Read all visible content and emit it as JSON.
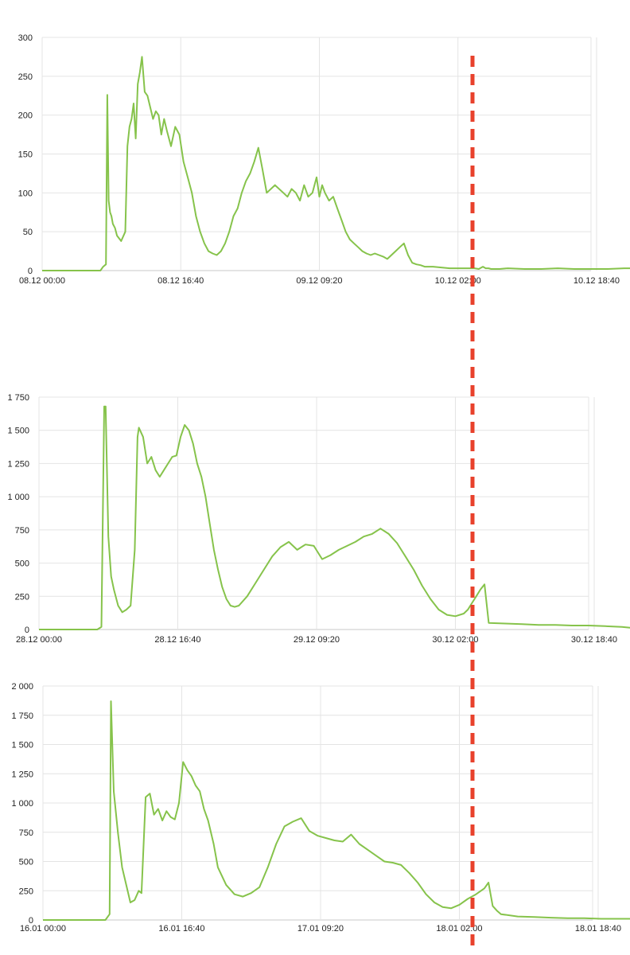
{
  "colors": {
    "line": "#86c34b",
    "grid": "#e4e4e4",
    "axis": "#c8c8c8",
    "marker": "#e8412c",
    "text": "#222222"
  },
  "marker": {
    "style": "dashed",
    "color": "#e8412c",
    "position": "shared vertical line",
    "description": ""
  },
  "chart_data": [
    {
      "type": "line",
      "title": "",
      "xlabel": "",
      "ylabel": "",
      "ylim": [
        0,
        300
      ],
      "xlim_hours": [
        0,
        66
      ],
      "grid": true,
      "x_tick_labels": [
        "08.12 00:00",
        "08.12 16:40",
        "09.12 09:20",
        "10.12 02:00",
        "10.12 18:40"
      ],
      "y_tick_labels": [
        "0",
        "50",
        "100",
        "150",
        "200",
        "250",
        "300"
      ],
      "y_tick_values": [
        0,
        50,
        100,
        150,
        200,
        250,
        300
      ],
      "series": [
        {
          "x": [
            "08.12 00:00",
            "08.12 07:00",
            "08.12 07:20",
            "08.12 07:40",
            "08.12 07:50",
            "08.12 08:00",
            "08.12 08:10",
            "08.12 08:20",
            "08.12 08:30",
            "08.12 08:45",
            "08.12 09:00",
            "08.12 09:30",
            "08.12 10:00",
            "08.12 10:15",
            "08.12 10:30",
            "08.12 10:45",
            "08.12 11:00",
            "08.12 11:15",
            "08.12 11:30",
            "08.12 11:45",
            "08.12 12:00",
            "08.12 12:20",
            "08.12 12:40",
            "08.12 13:00",
            "08.12 13:20",
            "08.12 13:40",
            "08.12 14:00",
            "08.12 14:20",
            "08.12 14:40",
            "08.12 15:00",
            "08.12 15:30",
            "08.12 16:00",
            "08.12 16:30",
            "08.12 17:00",
            "08.12 17:30",
            "08.12 18:00",
            "08.12 18:30",
            "08.12 19:00",
            "08.12 19:30",
            "08.12 20:00",
            "08.12 20:30",
            "08.12 21:00",
            "08.12 21:30",
            "08.12 22:00",
            "08.12 22:30",
            "08.12 23:00",
            "08.12 23:30",
            "09.12 00:00",
            "09.12 00:30",
            "09.12 01:00",
            "09.12 01:30",
            "09.12 02:00",
            "09.12 02:30",
            "09.12 03:00",
            "09.12 04:00",
            "09.12 05:00",
            "09.12 05:30",
            "09.12 06:00",
            "09.12 06:30",
            "09.12 07:00",
            "09.12 07:30",
            "09.12 08:00",
            "09.12 08:30",
            "09.12 09:00",
            "09.12 09:20",
            "09.12 09:40",
            "09.12 10:00",
            "09.12 10:30",
            "09.12 11:00",
            "09.12 11:30",
            "09.12 12:00",
            "09.12 12:30",
            "09.12 13:00",
            "09.12 13:30",
            "09.12 14:00",
            "09.12 14:30",
            "09.12 15:00",
            "09.12 15:30",
            "09.12 16:00",
            "09.12 16:30",
            "09.12 17:00",
            "09.12 17:30",
            "09.12 18:00",
            "09.12 18:30",
            "09.12 19:00",
            "09.12 19:30",
            "09.12 20:00",
            "09.12 20:30",
            "09.12 21:00",
            "09.12 21:30",
            "09.12 22:00",
            "09.12 23:00",
            "10.12 00:00",
            "10.12 01:00",
            "10.12 02:00",
            "10.12 03:00",
            "10.12 04:00",
            "10.12 04:30",
            "10.12 05:00",
            "10.12 05:20",
            "10.12 05:40",
            "10.12 06:00",
            "10.12 07:00",
            "10.12 08:00",
            "10.12 10:00",
            "10.12 12:00",
            "10.12 14:00",
            "10.12 16:00",
            "10.12 18:00",
            "10.12 20:00",
            "10.12 22:00",
            "10.12 23:30"
          ],
          "values": [
            0,
            0,
            5,
            8,
            226,
            90,
            75,
            70,
            60,
            55,
            45,
            38,
            50,
            160,
            185,
            195,
            215,
            170,
            240,
            255,
            275,
            230,
            225,
            210,
            195,
            205,
            200,
            175,
            195,
            180,
            160,
            185,
            175,
            140,
            120,
            100,
            70,
            50,
            35,
            25,
            22,
            20,
            25,
            35,
            50,
            70,
            80,
            100,
            115,
            125,
            140,
            158,
            130,
            100,
            110,
            100,
            95,
            105,
            100,
            90,
            110,
            95,
            100,
            120,
            95,
            110,
            100,
            90,
            95,
            80,
            65,
            50,
            40,
            35,
            30,
            25,
            22,
            20,
            22,
            20,
            18,
            15,
            20,
            25,
            30,
            35,
            20,
            10,
            8,
            7,
            5,
            5,
            4,
            3,
            3,
            3,
            3,
            2,
            5,
            3,
            3,
            2,
            2,
            3,
            2,
            2,
            3,
            2,
            2,
            2,
            3,
            3
          ],
          "note": ""
        }
      ]
    },
    {
      "type": "line",
      "title": "",
      "xlabel": "",
      "ylabel": "",
      "ylim": [
        0,
        1750
      ],
      "xlim_hours": [
        0,
        66
      ],
      "grid": true,
      "x_tick_labels": [
        "28.12 00:00",
        "28.12 16:40",
        "29.12 09:20",
        "30.12 02:00",
        "30.12 18:40"
      ],
      "y_tick_labels": [
        "0",
        "250",
        "500",
        "750",
        "1 000",
        "1 250",
        "1 500",
        "1 750"
      ],
      "y_tick_values": [
        0,
        250,
        500,
        750,
        1000,
        1250,
        1500,
        1750
      ],
      "series": [
        {
          "x": [
            "28.12 00:00",
            "28.12 07:00",
            "28.12 07:30",
            "28.12 07:50",
            "28.12 08:00",
            "28.12 08:20",
            "28.12 08:40",
            "28.12 09:00",
            "28.12 09:30",
            "28.12 10:00",
            "28.12 10:30",
            "28.12 11:00",
            "28.12 11:30",
            "28.12 11:50",
            "28.12 12:00",
            "28.12 12:30",
            "28.12 13:00",
            "28.12 13:30",
            "28.12 14:00",
            "28.12 14:30",
            "28.12 15:00",
            "28.12 15:30",
            "28.12 16:00",
            "28.12 16:30",
            "28.12 17:00",
            "28.12 17:30",
            "28.12 18:00",
            "28.12 18:30",
            "28.12 19:00",
            "28.12 19:30",
            "28.12 20:00",
            "28.12 20:30",
            "28.12 21:00",
            "28.12 21:30",
            "28.12 22:00",
            "28.12 22:30",
            "28.12 23:00",
            "28.12 23:30",
            "29.12 00:00",
            "29.12 01:00",
            "29.12 02:00",
            "29.12 03:00",
            "29.12 04:00",
            "29.12 05:00",
            "29.12 06:00",
            "29.12 07:00",
            "29.12 08:00",
            "29.12 09:00",
            "29.12 10:00",
            "29.12 11:00",
            "29.12 12:00",
            "29.12 13:00",
            "29.12 14:00",
            "29.12 15:00",
            "29.12 16:00",
            "29.12 17:00",
            "29.12 18:00",
            "29.12 19:00",
            "29.12 20:00",
            "29.12 21:00",
            "29.12 22:00",
            "29.12 23:00",
            "30.12 00:00",
            "30.12 01:00",
            "30.12 02:00",
            "30.12 03:00",
            "30.12 03:30",
            "30.12 04:00",
            "30.12 04:30",
            "30.12 05:00",
            "30.12 05:30",
            "30.12 06:00",
            "30.12 08:00",
            "30.12 10:00",
            "30.12 12:00",
            "30.12 14:00",
            "30.12 16:00",
            "30.12 18:00",
            "30.12 20:00",
            "30.12 22:00",
            "30.12 23:30"
          ],
          "values": [
            0,
            0,
            20,
            1680,
            1680,
            700,
            400,
            300,
            180,
            130,
            150,
            180,
            600,
            1450,
            1520,
            1450,
            1250,
            1300,
            1200,
            1150,
            1200,
            1250,
            1300,
            1310,
            1450,
            1540,
            1500,
            1400,
            1250,
            1150,
            1000,
            800,
            600,
            450,
            320,
            230,
            180,
            170,
            180,
            250,
            350,
            450,
            550,
            620,
            660,
            600,
            640,
            630,
            530,
            560,
            600,
            630,
            660,
            700,
            720,
            760,
            720,
            650,
            550,
            450,
            330,
            230,
            150,
            110,
            100,
            120,
            150,
            200,
            250,
            300,
            340,
            50,
            45,
            40,
            35,
            35,
            30,
            30,
            25,
            20,
            10
          ],
          "note": ""
        }
      ]
    },
    {
      "type": "line",
      "title": "",
      "xlabel": "",
      "ylabel": "",
      "ylim": [
        0,
        2000
      ],
      "xlim_hours": [
        0,
        66
      ],
      "grid": true,
      "x_tick_labels": [
        "16.01 00:00",
        "16.01 16:40",
        "17.01 09:20",
        "18.01 02:00",
        "18.01 18:40"
      ],
      "y_tick_labels": [
        "0",
        "250",
        "500",
        "750",
        "1 000",
        "1 250",
        "1 500",
        "1 750",
        "2 000"
      ],
      "y_tick_values": [
        0,
        250,
        500,
        750,
        1000,
        1250,
        1500,
        1750,
        2000
      ],
      "series": [
        {
          "x": [
            "16.01 00:00",
            "16.01 07:30",
            "16.01 08:00",
            "16.01 08:10",
            "16.01 08:30",
            "16.01 09:00",
            "16.01 09:30",
            "16.01 10:00",
            "16.01 10:30",
            "16.01 11:00",
            "16.01 11:30",
            "16.01 11:50",
            "16.01 12:20",
            "16.01 12:50",
            "16.01 13:20",
            "16.01 13:50",
            "16.01 14:20",
            "16.01 14:50",
            "16.01 15:20",
            "16.01 15:50",
            "16.01 16:20",
            "16.01 16:50",
            "16.01 17:20",
            "16.01 17:50",
            "16.01 18:20",
            "16.01 18:50",
            "16.01 19:20",
            "16.01 19:50",
            "16.01 20:30",
            "16.01 21:00",
            "16.01 22:00",
            "16.01 23:00",
            "17.01 00:00",
            "17.01 01:00",
            "17.01 02:00",
            "17.01 03:00",
            "17.01 04:00",
            "17.01 05:00",
            "17.01 06:00",
            "17.01 07:00",
            "17.01 08:00",
            "17.01 09:00",
            "17.01 10:00",
            "17.01 11:00",
            "17.01 12:00",
            "17.01 13:00",
            "17.01 14:00",
            "17.01 15:00",
            "17.01 16:00",
            "17.01 17:00",
            "17.01 18:00",
            "17.01 19:00",
            "17.01 20:00",
            "17.01 21:00",
            "17.01 22:00",
            "17.01 23:00",
            "18.01 00:00",
            "18.01 01:00",
            "18.01 02:00",
            "18.01 03:00",
            "18.01 04:00",
            "18.01 05:00",
            "18.01 05:30",
            "18.01 06:00",
            "18.01 06:30",
            "18.01 07:00",
            "18.01 09:00",
            "18.01 11:00",
            "18.01 13:00",
            "18.01 15:00",
            "18.01 17:00",
            "18.01 19:00",
            "18.01 21:00",
            "18.01 23:00",
            "18.01 23:59"
          ],
          "values": [
            0,
            0,
            50,
            1870,
            1100,
            750,
            450,
            300,
            150,
            170,
            250,
            230,
            1050,
            1080,
            900,
            950,
            850,
            930,
            880,
            860,
            1000,
            1350,
            1280,
            1230,
            1150,
            1100,
            950,
            850,
            650,
            450,
            300,
            220,
            200,
            230,
            280,
            450,
            650,
            800,
            840,
            870,
            760,
            720,
            700,
            680,
            670,
            730,
            650,
            600,
            550,
            500,
            490,
            470,
            400,
            320,
            220,
            150,
            110,
            100,
            130,
            180,
            220,
            270,
            320,
            120,
            80,
            50,
            30,
            25,
            20,
            15,
            15,
            10,
            10,
            10,
            8
          ],
          "note": ""
        }
      ]
    }
  ]
}
